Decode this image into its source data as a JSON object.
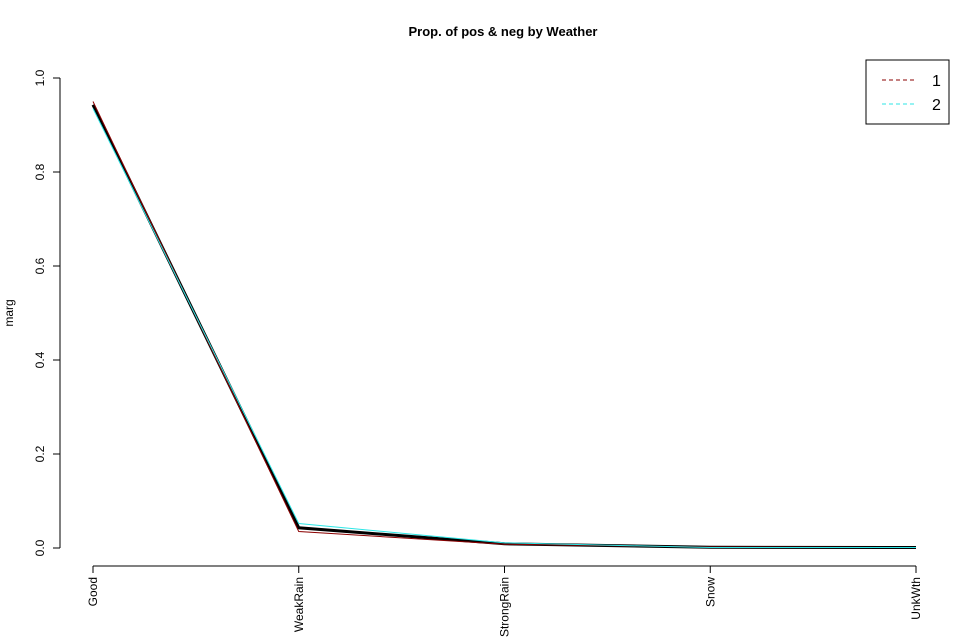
{
  "chart_data": {
    "type": "line",
    "title": "Prop. of pos & neg by Weather",
    "xlabel": "",
    "ylabel": "marg",
    "categories": [
      "Good",
      "WeakRain",
      "StrongRain",
      "Snow",
      "UnkWth"
    ],
    "ylim": [
      0,
      1
    ],
    "yticks": [
      "0.0",
      "0.2",
      "0.4",
      "0.6",
      "0.8",
      "1.0"
    ],
    "grid": false,
    "legend_position": "top-right",
    "series": [
      {
        "name": "1",
        "values": [
          0.95,
          0.035,
          0.008,
          0.002,
          0.001
        ],
        "color": "#8B0000",
        "dash": "dashed"
      },
      {
        "name": "2",
        "values": [
          0.935,
          0.052,
          0.011,
          0.001,
          0.001
        ],
        "color": "#2EE6E6",
        "dash": "dashed"
      }
    ],
    "overall_line": {
      "values": [
        0.943,
        0.043,
        0.009,
        0.0015,
        0.001
      ],
      "color": "#000000"
    }
  }
}
